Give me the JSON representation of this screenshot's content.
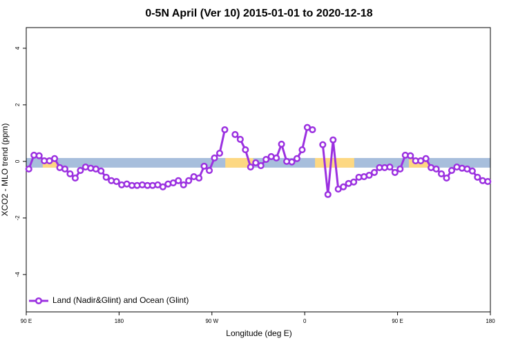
{
  "chart_data": {
    "type": "line",
    "title": "0-5N April (Ver 10)   2015-01-01 to 2020-12-18",
    "x_label": "Longitude (deg E)",
    "y_label": "XCO2 - MLO trend (ppm)",
    "xlim": [
      90,
      540
    ],
    "xticks": [
      {
        "value": 90,
        "label": "90 E"
      },
      {
        "value": 180,
        "label": "180"
      },
      {
        "value": 270,
        "label": "90 W"
      },
      {
        "value": 360,
        "label": "0"
      },
      {
        "value": 450,
        "label": "90 E"
      },
      {
        "value": 540,
        "label": "180"
      }
    ],
    "ylim": [
      -5.32,
      4.73
    ],
    "yticks": [
      -4,
      -2,
      0,
      2,
      4
    ],
    "legend": "bottom-left",
    "band": {
      "ylim": [
        -0.22,
        0.12
      ],
      "color": "#a7bedc",
      "highlight_color": "#fdd882",
      "highlight_ranges": [
        [
          106,
          120
        ],
        [
          283,
          310
        ],
        [
          370,
          408
        ],
        [
          461,
          480
        ]
      ]
    },
    "x": [
      92.5,
      97.5,
      102.5,
      107.5,
      112.5,
      117.5,
      122.5,
      127.5,
      132.5,
      137.5,
      142.5,
      147.5,
      152.5,
      157.5,
      162.5,
      167.5,
      172.5,
      177.5,
      182.5,
      187.5,
      192.5,
      197.5,
      202.5,
      207.5,
      212.5,
      217.5,
      222.5,
      227.5,
      232.5,
      237.5,
      242.5,
      247.5,
      252.5,
      257.5,
      262.5,
      267.5,
      272.5,
      277.5,
      282.5,
      287.5,
      292.5,
      297.5,
      302.5,
      307.5,
      312.5,
      317.5,
      322.5,
      327.5,
      332.5,
      337.5,
      342.5,
      347.5,
      352.5,
      357.5,
      362.5,
      367.5,
      372.5,
      377.5,
      382.5,
      387.5,
      392.5,
      397.5,
      402.5,
      407.5,
      412.5,
      417.5,
      422.5,
      427.5,
      432.5,
      437.5,
      442.5,
      447.5,
      452.5,
      457.5,
      462.5,
      467.5,
      472.5,
      477.5,
      482.5,
      487.5,
      492.5,
      497.5,
      502.5,
      507.5,
      512.5,
      517.5,
      522.5,
      527.5,
      532.5,
      537.5
    ],
    "series": [
      {
        "name": "Land (Nadir&Glint) and Ocean (Glint)",
        "color": "#9b30e0",
        "values": [
          -0.27,
          0.22,
          0.2,
          0.02,
          0.02,
          0.1,
          -0.22,
          -0.27,
          -0.44,
          -0.59,
          -0.32,
          -0.2,
          -0.24,
          -0.27,
          -0.34,
          -0.56,
          -0.68,
          -0.71,
          -0.83,
          -0.8,
          -0.85,
          -0.85,
          -0.83,
          -0.85,
          -0.85,
          -0.83,
          -0.9,
          -0.8,
          -0.76,
          -0.68,
          -0.83,
          -0.68,
          -0.54,
          -0.59,
          -0.17,
          -0.32,
          0.12,
          0.29,
          1.12,
          null,
          0.95,
          0.78,
          0.41,
          -0.2,
          -0.05,
          -0.15,
          0.07,
          0.17,
          0.12,
          0.61,
          0,
          -0.02,
          0.1,
          0.41,
          1.2,
          1.12,
          null,
          0.59,
          -1.17,
          0.76,
          -0.98,
          -0.9,
          -0.78,
          -0.73,
          -0.56,
          -0.54,
          -0.49,
          -0.39,
          -0.22,
          -0.22,
          -0.2,
          -0.39,
          -0.27,
          0.22,
          0.2,
          0.02,
          0.02,
          0.1,
          -0.22,
          -0.27,
          -0.44,
          -0.59,
          -0.32,
          -0.2,
          -0.24,
          -0.27,
          -0.34,
          -0.56,
          -0.68,
          -0.71
        ]
      }
    ]
  }
}
